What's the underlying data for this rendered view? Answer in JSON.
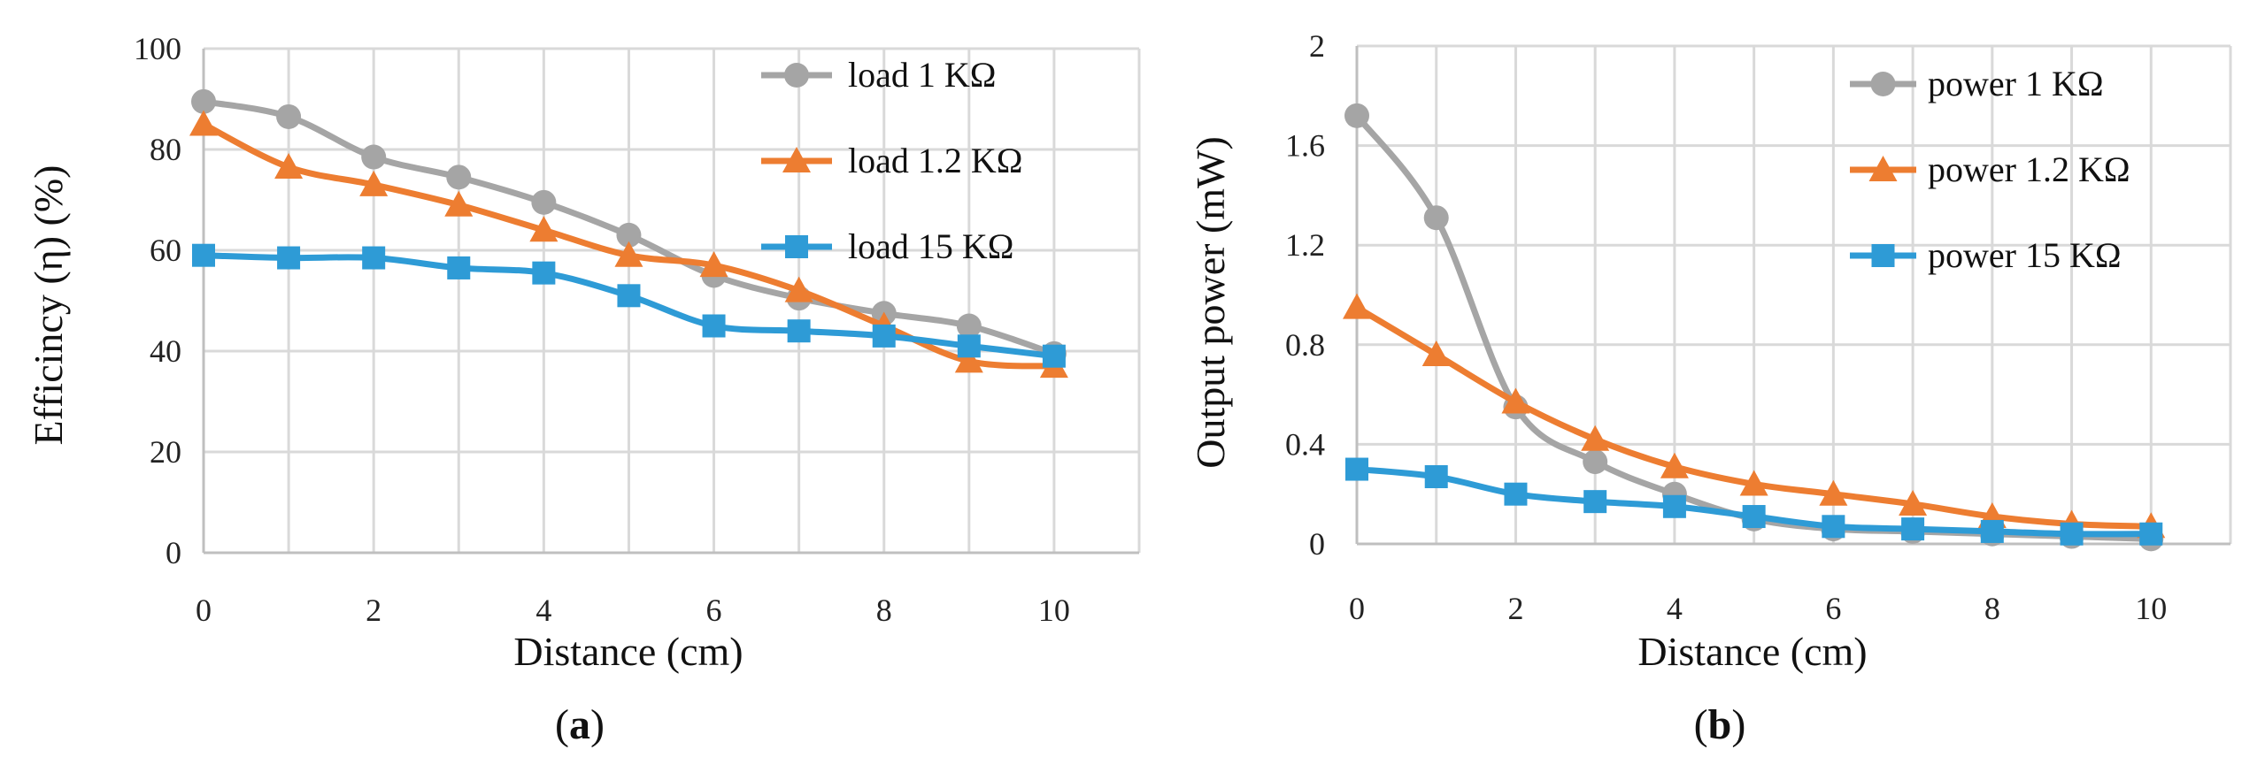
{
  "chart_data": [
    {
      "type": "line",
      "panel_label": "a",
      "xlabel": "Distance  (cm)",
      "ylabel": "Efficincy (η) (%)",
      "x": [
        0,
        1,
        2,
        3,
        4,
        5,
        6,
        7,
        8,
        9,
        10
      ],
      "xlim": [
        0,
        11
      ],
      "ylim": [
        0,
        100
      ],
      "xticks": [
        "0",
        "2",
        "4",
        "6",
        "8",
        "10"
      ],
      "yticks": [
        "0",
        "20",
        "40",
        "60",
        "80",
        "100"
      ],
      "legend_position": "top-right",
      "grid": true,
      "series": [
        {
          "name": "load 1 KΩ",
          "color": "#a5a5a5",
          "marker": "circle",
          "values": [
            89.5,
            86.5,
            78.5,
            74.5,
            69.5,
            63,
            55,
            50.5,
            47.5,
            45,
            39.5
          ]
        },
        {
          "name": "load 1.2 KΩ",
          "color": "#ed7d31",
          "marker": "triangle",
          "values": [
            85,
            76.5,
            73,
            69,
            64,
            59,
            57,
            52,
            45,
            38,
            37
          ]
        },
        {
          "name": "load 15 KΩ",
          "color": "#2e9bd6",
          "marker": "square",
          "values": [
            59,
            58.5,
            58.5,
            56.5,
            55.5,
            51,
            45,
            44,
            43,
            41,
            39
          ]
        }
      ]
    },
    {
      "type": "line",
      "panel_label": "b",
      "xlabel": "Distance (cm)",
      "ylabel": "Output power (mW)",
      "x": [
        0,
        1,
        2,
        3,
        4,
        5,
        6,
        7,
        8,
        9,
        10
      ],
      "xlim": [
        0,
        11
      ],
      "ylim": [
        0,
        2
      ],
      "xticks": [
        "0",
        "2",
        "4",
        "6",
        "8",
        "10"
      ],
      "yticks": [
        "0",
        "0.4",
        "0.8",
        "1.2",
        "1.6",
        "2"
      ],
      "legend_position": "top-right",
      "grid": true,
      "series": [
        {
          "name": "power 1 KΩ",
          "color": "#a5a5a5",
          "marker": "circle",
          "values": [
            1.72,
            1.31,
            0.55,
            0.33,
            0.2,
            0.1,
            0.06,
            0.05,
            0.04,
            0.03,
            0.02
          ]
        },
        {
          "name": "power 1.2 KΩ",
          "color": "#ed7d31",
          "marker": "triangle",
          "values": [
            0.95,
            0.76,
            0.57,
            0.42,
            0.31,
            0.24,
            0.2,
            0.16,
            0.11,
            0.08,
            0.07
          ]
        },
        {
          "name": "power 15 KΩ",
          "color": "#2e9bd6",
          "marker": "square",
          "values": [
            0.3,
            0.27,
            0.2,
            0.17,
            0.15,
            0.11,
            0.07,
            0.06,
            0.05,
            0.04,
            0.04
          ]
        }
      ]
    }
  ]
}
